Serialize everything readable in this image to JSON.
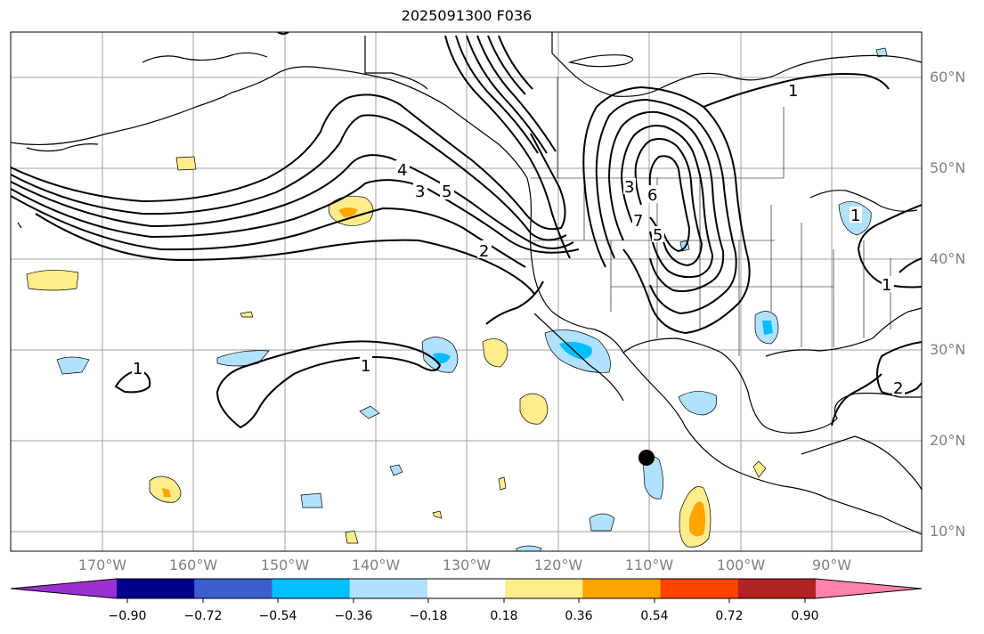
{
  "title": "2025091300 F036",
  "lat_labels": [
    "60°N",
    "50°N",
    "40°N",
    "30°N",
    "20°N",
    "10°N"
  ],
  "lon_labels": [
    "170°W",
    "160°W",
    "150°W",
    "140°W",
    "130°W",
    "120°W",
    "110°W",
    "100°W",
    "90°W"
  ],
  "colorbar": {
    "ticks": [
      "−0.90",
      "−0.72",
      "−0.54",
      "−0.36",
      "−0.18",
      "0.18",
      "0.36",
      "0.54",
      "0.72",
      "0.90"
    ],
    "colors": [
      "#9b30d0",
      "#00008b",
      "#3a5fcd",
      "#00bfff",
      "#b0e2ff",
      "#ffffff",
      "#ffec8b",
      "#ffa500",
      "#ff4500",
      "#b22222",
      "#ff82ab"
    ]
  },
  "contour_labels": [
    "1",
    "1",
    "1",
    "1",
    "2",
    "2",
    "3",
    "3",
    "4",
    "5",
    "5",
    "6",
    "7",
    "1"
  ],
  "marker": "storm-center-dot"
}
